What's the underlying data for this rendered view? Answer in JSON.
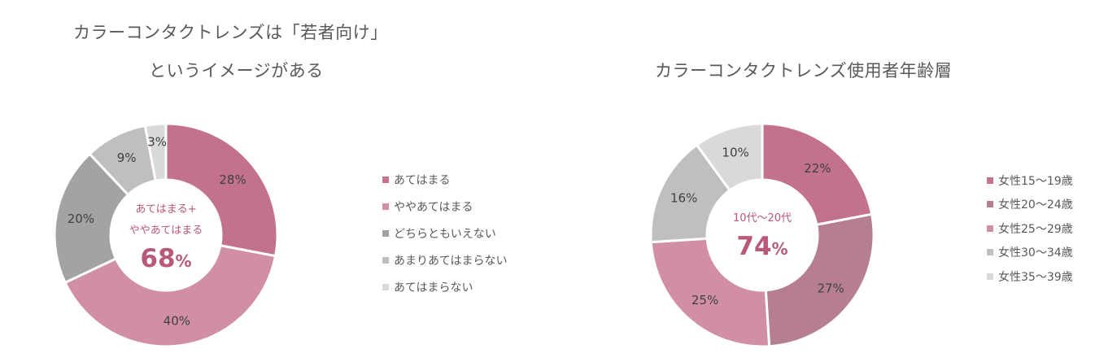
{
  "chart_data": [
    {
      "type": "pie",
      "variant": "donut",
      "title": "カラーコンタクトレンズは「若者向け」というイメージがある",
      "title_lines": [
        "カラーコンタクトレンズは「若者向け」",
        "というイメージがある"
      ],
      "categories": [
        "あてはまる",
        "ややあてはまる",
        "どちらともいえない",
        "あまりあてはまらない",
        "あてはまらない"
      ],
      "values": [
        28,
        40,
        20,
        9,
        3
      ],
      "labels": [
        "28%",
        "40%",
        "20%",
        "9%",
        "3%"
      ],
      "colors": [
        "#C2728C",
        "#D08FA5",
        "#A3A3A3",
        "#BFBFBF",
        "#D9D9D9"
      ],
      "center": {
        "line1": "あてはまる+",
        "line2": "ややあてはまる",
        "value": "68",
        "unit": "%"
      },
      "legend_position": "right"
    },
    {
      "type": "pie",
      "variant": "donut",
      "title": "カラーコンタクトレンズ使用者年齢層",
      "title_lines": [
        "カラーコンタクトレンズ使用者年齢層"
      ],
      "categories": [
        "女性15〜19歳",
        "女性20〜24歳",
        "女性25〜29歳",
        "女性30〜34歳",
        "女性35〜39歳"
      ],
      "values": [
        22,
        27,
        25,
        16,
        10
      ],
      "labels": [
        "22%",
        "27%",
        "25%",
        "16%",
        "10%"
      ],
      "colors": [
        "#C2728C",
        "#B67F91",
        "#D08FA5",
        "#BFBFBF",
        "#D9D9D9"
      ],
      "center": {
        "line1": "10代〜20代",
        "value": "74",
        "unit": "%"
      },
      "legend_position": "right"
    }
  ]
}
